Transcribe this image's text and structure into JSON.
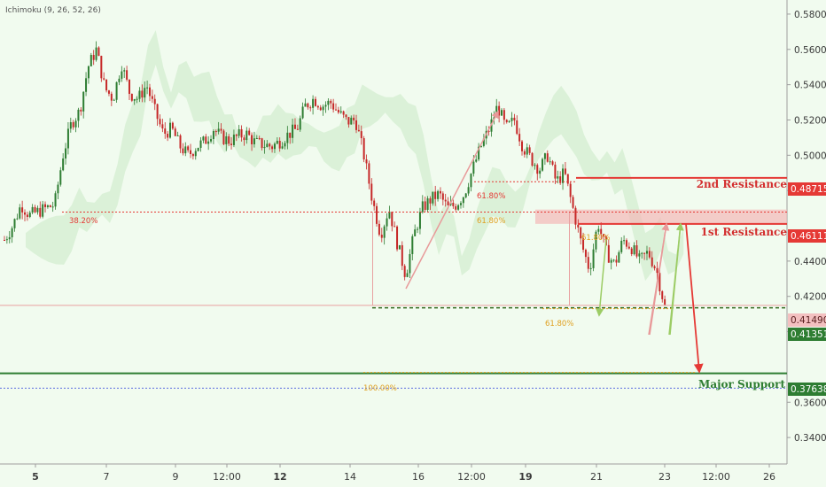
{
  "indicator": {
    "label": "Ichimoku (9, 26, 52, 26)"
  },
  "colors": {
    "background": "#f1fbef",
    "bull_candle": "#2e7d32",
    "bear_candle": "#c62828",
    "resistance": "#e53935",
    "support": "#2e7d32",
    "fib_orange": "#e0a020"
  },
  "annotations": {
    "second_resistance": "2nd Resistance",
    "first_resistance": "1st Resistance",
    "major_support": "Major Support",
    "fib_618_a": "61.80%",
    "fib_618_b": "61.80%",
    "fib_382": "38.20%",
    "fib_100": "100.00%",
    "fib_618_c": "61.80%",
    "fib_618_d": "61.80%"
  },
  "price_tags": {
    "second_resistance": "0.48715",
    "first_resistance": "0.46111",
    "level_a": "0.41490",
    "level_b": "0.41351",
    "major_support": "0.37638"
  },
  "chart_data": {
    "type": "candlestick",
    "y_range": [
      0.325,
      0.588
    ],
    "y_ticks": [
      "0.58000",
      "0.56000",
      "0.54000",
      "0.52000",
      "0.50000",
      "0.48000",
      "0.44000",
      "0.42000",
      "0.40000",
      "0.36000",
      "0.34000"
    ],
    "x_ticks": [
      {
        "label": "5",
        "bold": true
      },
      {
        "label": "7",
        "bold": false
      },
      {
        "label": "9",
        "bold": false
      },
      {
        "label": "12:00",
        "bold": false
      },
      {
        "label": "12",
        "bold": true
      },
      {
        "label": "14",
        "bold": false
      },
      {
        "label": "16",
        "bold": false
      },
      {
        "label": "12:00",
        "bold": false
      },
      {
        "label": "19",
        "bold": true
      },
      {
        "label": "21",
        "bold": false
      },
      {
        "label": "23",
        "bold": false
      },
      {
        "label": "12:00",
        "bold": false
      },
      {
        "label": "26",
        "bold": false
      }
    ],
    "levels": {
      "second_resistance": 0.48715,
      "first_resistance": 0.46111,
      "first_resistance_zone": [
        0.4611,
        0.4692
      ],
      "level_a": 0.4149,
      "level_b": 0.41351,
      "major_support": 0.37638,
      "blue_dotted": 0.368,
      "fib_382": 0.4678,
      "fib_618_upper": 0.485,
      "fib_618_mid": 0.468
    },
    "price_path": [
      0.452,
      0.46,
      0.472,
      0.466,
      0.468,
      0.47,
      0.472,
      0.5,
      0.518,
      0.525,
      0.55,
      0.56,
      0.538,
      0.532,
      0.552,
      0.535,
      0.532,
      0.54,
      0.525,
      0.512,
      0.515,
      0.505,
      0.5,
      0.505,
      0.508,
      0.515,
      0.51,
      0.508,
      0.511,
      0.512,
      0.507,
      0.506,
      0.505,
      0.508,
      0.512,
      0.515,
      0.528,
      0.532,
      0.528,
      0.53,
      0.524,
      0.519,
      0.52,
      0.5,
      0.475,
      0.455,
      0.47,
      0.45,
      0.432,
      0.455,
      0.47,
      0.475,
      0.478,
      0.47,
      0.472,
      0.478,
      0.492,
      0.505,
      0.515,
      0.528,
      0.515,
      0.52,
      0.505,
      0.498,
      0.492,
      0.5,
      0.485,
      0.49,
      0.47,
      0.45,
      0.435,
      0.462,
      0.445,
      0.438,
      0.452,
      0.448,
      0.44,
      0.445,
      0.435,
      0.414
    ],
    "projection": {
      "from": 0.4611,
      "to": 0.37638
    }
  }
}
